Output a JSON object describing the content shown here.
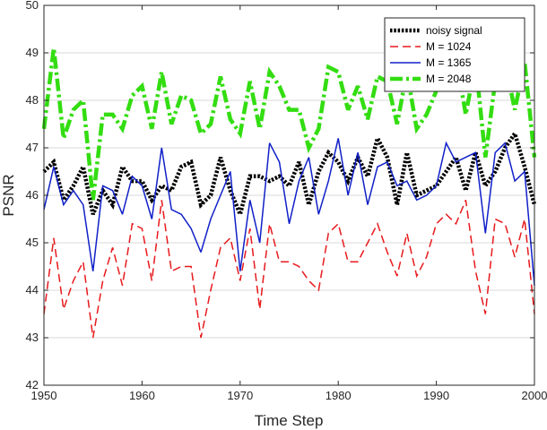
{
  "chart_data": {
    "type": "line",
    "title": "",
    "xlabel": "Time Step",
    "ylabel": "PSNR",
    "xlim": [
      1950,
      2000
    ],
    "ylim": [
      42,
      50
    ],
    "xticks": [
      1950,
      1960,
      1970,
      1980,
      1990,
      2000
    ],
    "yticks": [
      42,
      43,
      44,
      45,
      46,
      47,
      48,
      49,
      50
    ],
    "grid": "horizontal",
    "legend_position": "top-right",
    "x": [
      1950,
      1951,
      1952,
      1953,
      1954,
      1955,
      1956,
      1957,
      1958,
      1959,
      1960,
      1961,
      1962,
      1963,
      1964,
      1965,
      1966,
      1967,
      1968,
      1969,
      1970,
      1971,
      1972,
      1973,
      1974,
      1975,
      1976,
      1977,
      1978,
      1979,
      1980,
      1981,
      1982,
      1983,
      1984,
      1985,
      1986,
      1987,
      1988,
      1989,
      1990,
      1991,
      1992,
      1993,
      1994,
      1995,
      1996,
      1997,
      1998,
      1999,
      2000
    ],
    "series": [
      {
        "name": "noisy signal",
        "color": "#000000",
        "style": "dotted",
        "values": [
          46.5,
          46.7,
          45.9,
          46.2,
          46.6,
          45.6,
          46.1,
          45.8,
          46.6,
          46.3,
          46.3,
          45.9,
          46.2,
          46.1,
          46.6,
          46.7,
          45.8,
          46.0,
          46.8,
          46.1,
          45.6,
          46.4,
          46.4,
          46.3,
          46.4,
          46.2,
          46.7,
          45.8,
          46.5,
          46.9,
          46.7,
          46.3,
          46.8,
          46.4,
          47.2,
          46.8,
          45.8,
          46.9,
          46.0,
          46.1,
          46.2,
          46.5,
          46.8,
          46.1,
          46.9,
          46.2,
          46.5,
          47.0,
          47.3,
          46.6,
          45.8
        ]
      },
      {
        "name": "M = 1024",
        "color": "#e8191c",
        "style": "dashed",
        "values": [
          43.5,
          45.1,
          43.6,
          44.2,
          44.6,
          43.0,
          44.2,
          44.9,
          44.1,
          45.4,
          45.3,
          44.2,
          45.9,
          44.4,
          44.5,
          44.5,
          43.0,
          44.0,
          44.9,
          45.1,
          44.2,
          45.3,
          43.6,
          45.4,
          44.6,
          44.6,
          44.5,
          44.2,
          44.0,
          45.2,
          45.4,
          44.6,
          44.6,
          45.0,
          45.4,
          44.8,
          44.3,
          45.2,
          44.3,
          44.7,
          45.4,
          45.6,
          45.4,
          45.9,
          44.4,
          43.5,
          45.5,
          45.4,
          44.7,
          45.5,
          43.5
        ]
      },
      {
        "name": "M = 1365",
        "color": "#1020c8",
        "style": "solid",
        "values": [
          45.7,
          46.6,
          45.8,
          46.1,
          45.8,
          44.4,
          46.2,
          46.1,
          45.6,
          46.4,
          46.2,
          45.5,
          47.0,
          45.7,
          45.6,
          45.3,
          44.8,
          45.5,
          46.0,
          46.5,
          44.4,
          45.9,
          45.0,
          47.1,
          46.7,
          45.4,
          46.3,
          46.8,
          45.6,
          46.3,
          47.2,
          46.0,
          46.9,
          45.8,
          46.6,
          46.7,
          46.2,
          46.3,
          45.9,
          46.0,
          46.2,
          47.1,
          46.7,
          46.8,
          46.9,
          45.2,
          46.9,
          47.1,
          46.3,
          46.5,
          44.1
        ]
      },
      {
        "name": "M = 2048",
        "color": "#33dd11",
        "style": "dashdot",
        "values": [
          47.4,
          49.1,
          47.2,
          47.8,
          48.0,
          45.9,
          47.7,
          47.7,
          47.4,
          48.1,
          48.3,
          47.4,
          48.6,
          47.5,
          48.1,
          48.0,
          47.3,
          47.5,
          48.5,
          47.6,
          47.3,
          48.4,
          47.4,
          48.6,
          48.3,
          47.8,
          47.8,
          47.0,
          47.4,
          48.7,
          48.6,
          47.8,
          48.3,
          47.6,
          48.5,
          48.4,
          47.5,
          48.6,
          47.4,
          47.7,
          48.2,
          48.5,
          48.9,
          47.7,
          48.8,
          46.8,
          48.4,
          48.8,
          47.8,
          48.8,
          46.8
        ]
      }
    ]
  }
}
